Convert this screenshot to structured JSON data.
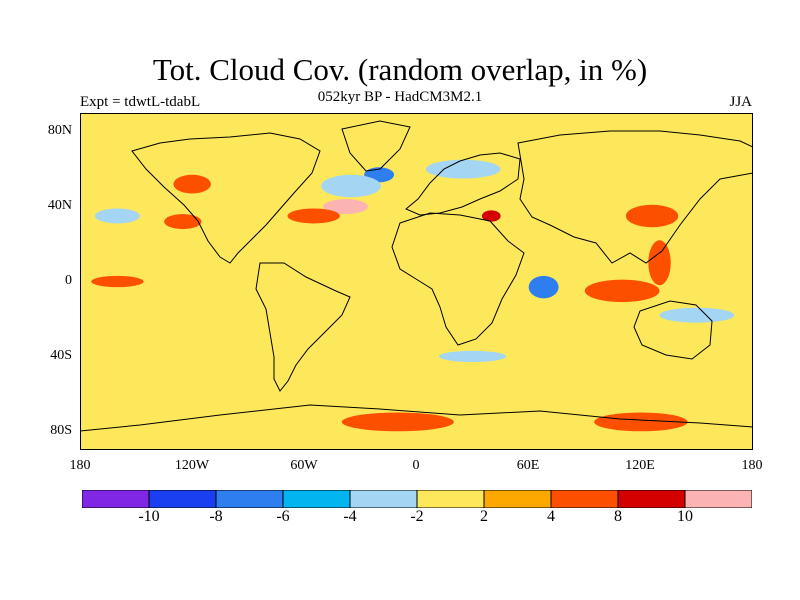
{
  "header": {
    "title": "Tot. Cloud Cov. (random overlap, in %)",
    "subtitle": "052kyr BP - HadCM3M2.1",
    "experiment": "Expt = tdwtL-tdabL",
    "season": "JJA"
  },
  "axes": {
    "y_ticks": [
      "80N",
      "40N",
      "0",
      "40S",
      "80S"
    ],
    "x_ticks": [
      "180",
      "120W",
      "60W",
      "0",
      "60E",
      "120E",
      "180"
    ]
  },
  "colorbar": {
    "labels": [
      "-10",
      "-8",
      "-6",
      "-4",
      "-2",
      "2",
      "4",
      "8",
      "10"
    ],
    "colors": [
      "#7f27e5",
      "#1a3ff0",
      "#2f7ef0",
      "#00b5f0",
      "#a4d6f4",
      "#fde85c",
      "#fda800",
      "#fc5000",
      "#d40000",
      "#fbb3b3"
    ]
  },
  "chart_data": {
    "type": "heatmap",
    "title": "Tot. Cloud Cov. (random overlap, in %)",
    "subtitle": "052kyr BP - HadCM3M2.1",
    "xlim": [
      -180,
      180
    ],
    "ylim": [
      -90,
      90
    ],
    "contour_levels": [
      -10,
      -8,
      -6,
      -4,
      -2,
      2,
      4,
      8,
      10
    ],
    "anomalies": [
      {
        "lon": -38,
        "lat": 40,
        "value": 11,
        "rlon": 12,
        "rlat": 4
      },
      {
        "lon": -20,
        "lat": 57,
        "value": -8,
        "rlon": 8,
        "rlat": 4
      },
      {
        "lon": -35,
        "lat": 51,
        "value": -4,
        "rlon": 16,
        "rlat": 6
      },
      {
        "lon": 68,
        "lat": -3,
        "value": -7,
        "rlon": 8,
        "rlat": 6
      },
      {
        "lon": 110,
        "lat": -5,
        "value": 6,
        "rlon": 20,
        "rlat": 6
      },
      {
        "lon": -125,
        "lat": 32,
        "value": 5,
        "rlon": 10,
        "rlat": 4
      },
      {
        "lon": -55,
        "lat": 35,
        "value": 4,
        "rlon": 14,
        "rlat": 4
      },
      {
        "lon": 126,
        "lat": 35,
        "value": 5,
        "rlon": 14,
        "rlat": 6
      },
      {
        "lon": 130,
        "lat": 10,
        "value": 4,
        "rlon": 6,
        "rlat": 12
      },
      {
        "lon": -160,
        "lat": 0,
        "value": 4,
        "rlon": 14,
        "rlat": 3
      },
      {
        "lon": 150,
        "lat": -18,
        "value": -3,
        "rlon": 20,
        "rlat": 4
      },
      {
        "lon": 25,
        "lat": 60,
        "value": -3,
        "rlon": 20,
        "rlat": 5
      },
      {
        "lon": -120,
        "lat": 52,
        "value": 4,
        "rlon": 10,
        "rlat": 5
      },
      {
        "lon": 30,
        "lat": -40,
        "value": -3,
        "rlon": 18,
        "rlat": 3
      },
      {
        "lon": -10,
        "lat": -75,
        "value": 4,
        "rlon": 30,
        "rlat": 5
      },
      {
        "lon": 120,
        "lat": -75,
        "value": 4,
        "rlon": 25,
        "rlat": 5
      },
      {
        "lon": -160,
        "lat": 35,
        "value": -3,
        "rlon": 12,
        "rlat": 4
      },
      {
        "lon": 40,
        "lat": 35,
        "value": 9,
        "rlon": 5,
        "rlat": 3
      }
    ]
  }
}
